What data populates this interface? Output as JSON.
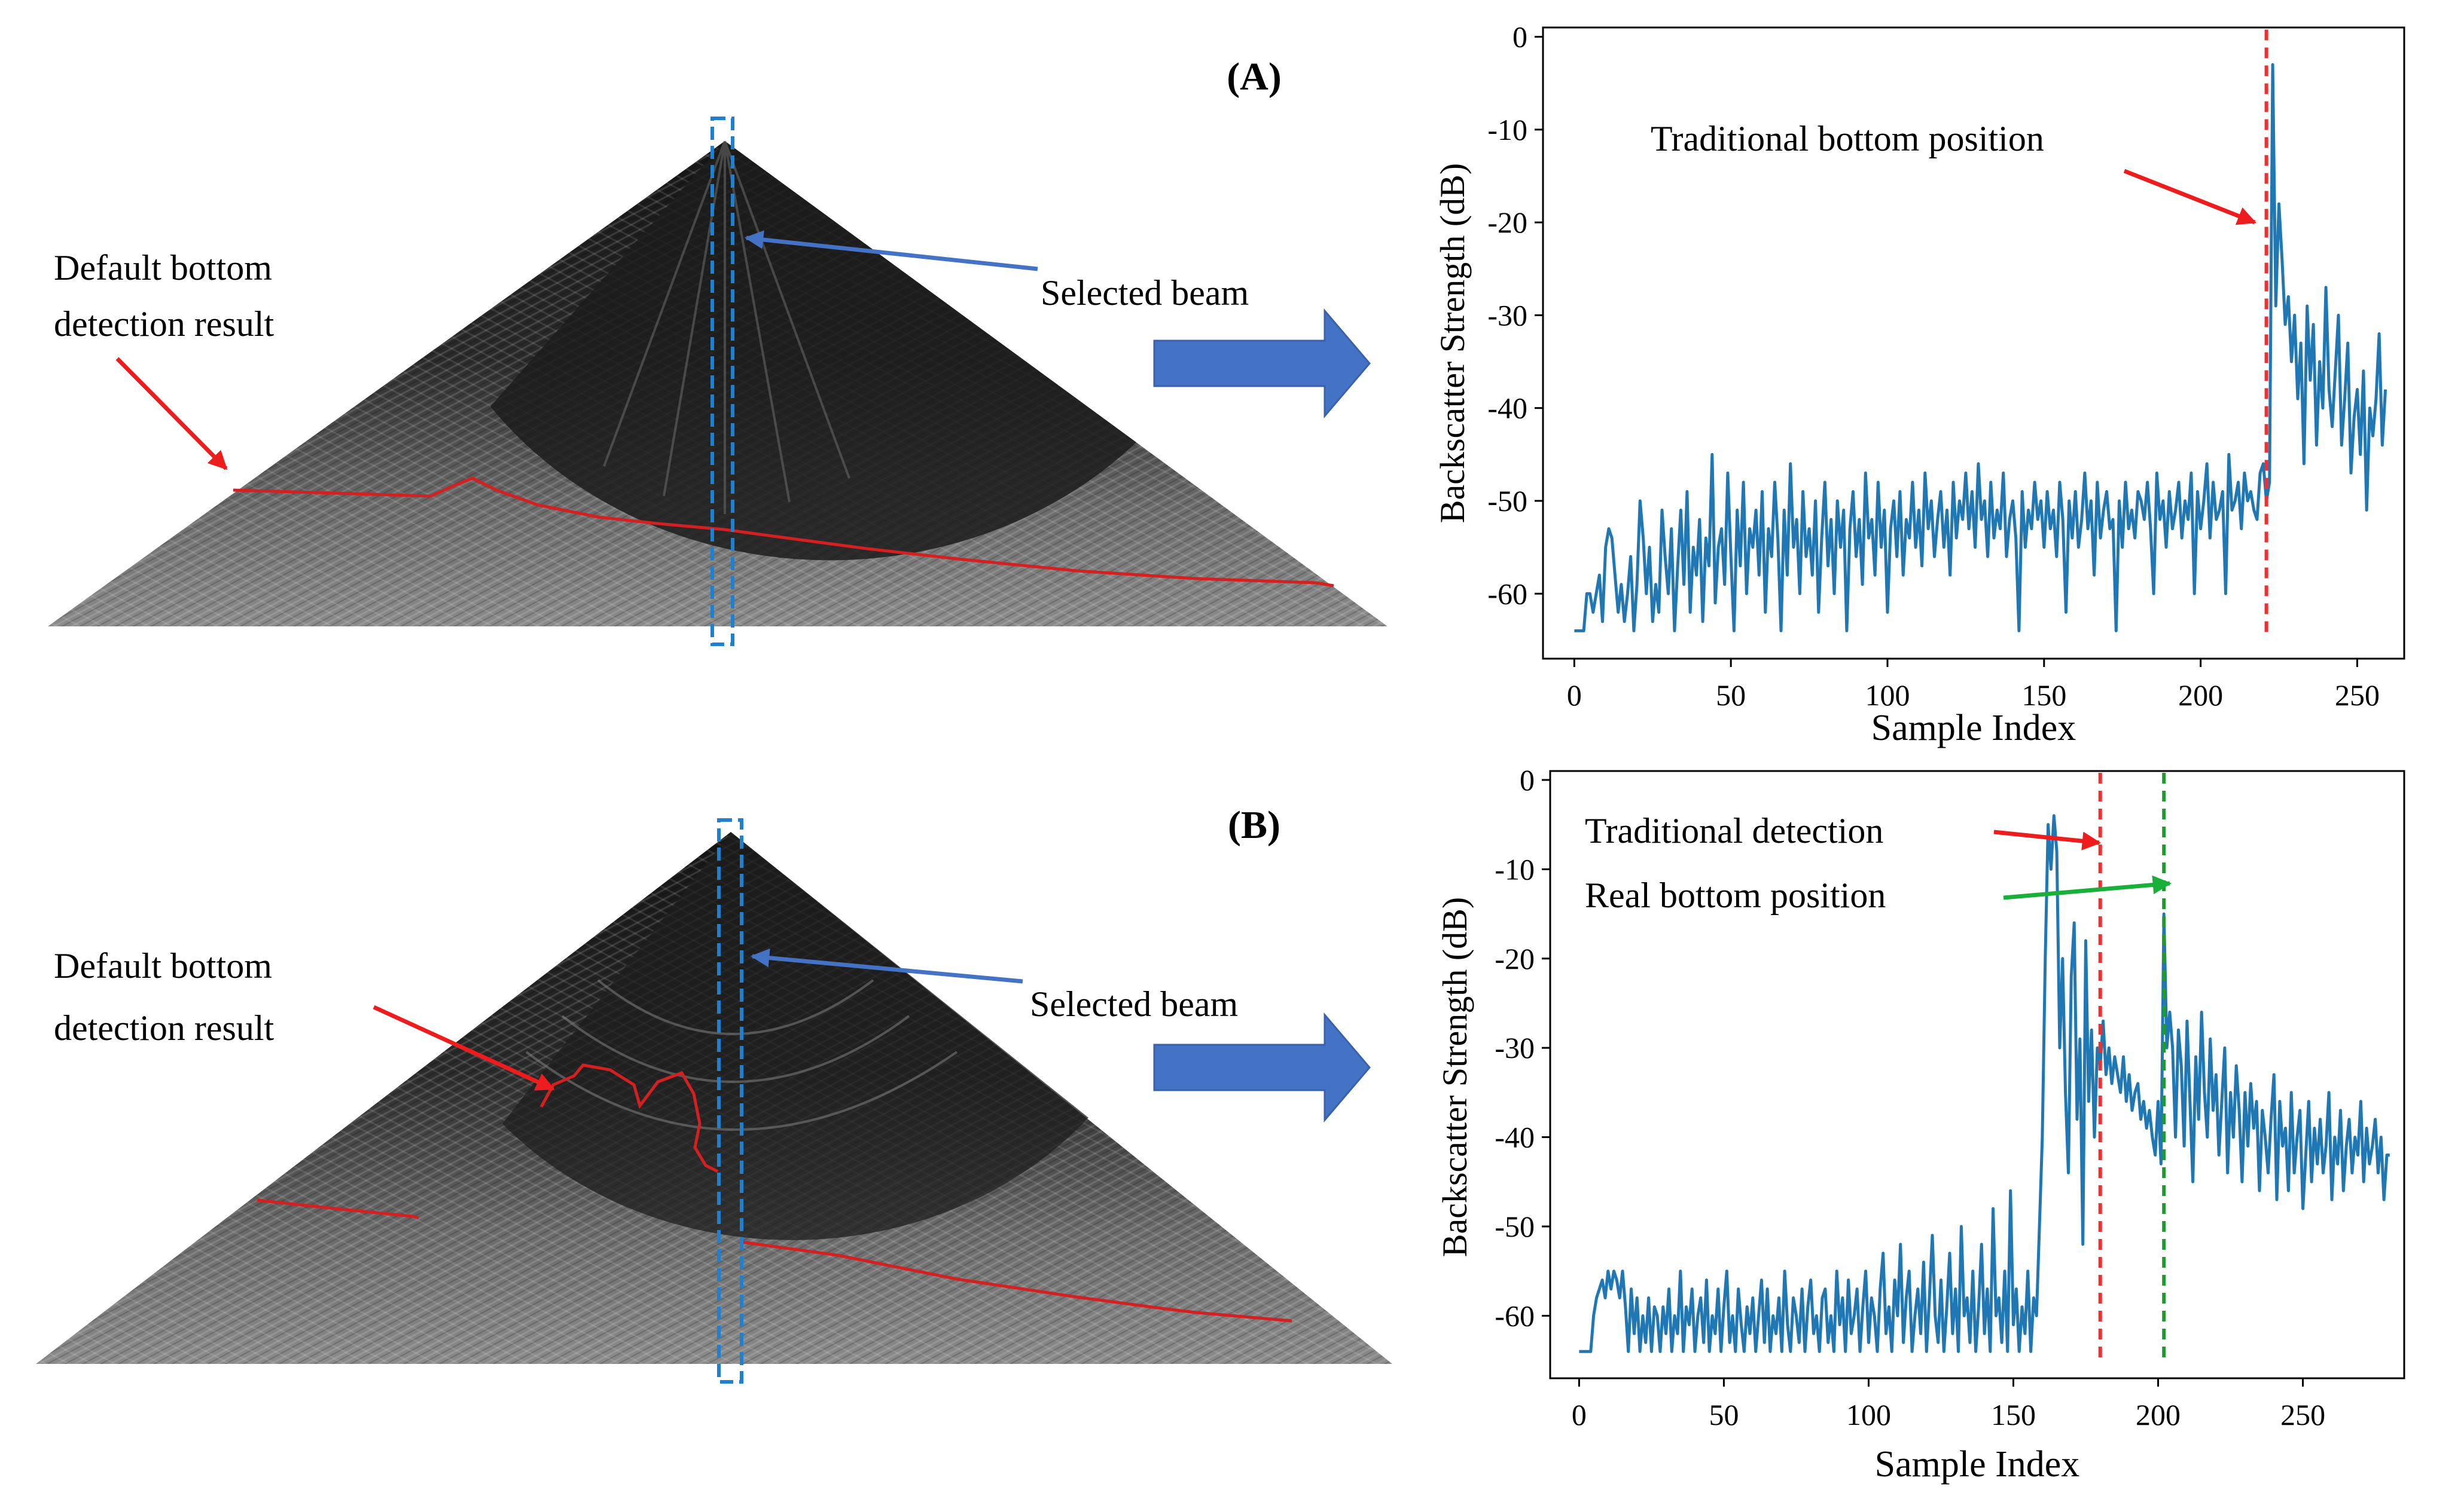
{
  "colors": {
    "series": "#1f77b4",
    "traditional": "#f03030",
    "real": "#1f9a2e",
    "arrow_red": "#ee1c1c",
    "arrow_green": "#19b03a",
    "arrow_blue": "#4472c4",
    "beam_box": "#1f7fd0",
    "big_arrow": "#4472c4",
    "detection_line": "#d42020"
  },
  "panel_a": {
    "label": "(A)",
    "annotation_default": [
      "Default bottom",
      "detection result"
    ],
    "annotation_beam": "Selected beam",
    "annotation_traditional": "Traditional bottom position"
  },
  "panel_b": {
    "label": "(B)",
    "annotation_default": [
      "Default bottom",
      "detection result"
    ],
    "annotation_beam": "Selected beam",
    "annotation_traditional": "Traditional detection",
    "annotation_real": "Real bottom position"
  },
  "chart_data": [
    {
      "type": "line",
      "id": "A",
      "xlabel": "Sample Index",
      "ylabel": "Backscatter Strength (dB)",
      "xlim": [
        -10,
        265
      ],
      "ylim": [
        -67,
        1
      ],
      "xticks": [
        0,
        50,
        100,
        150,
        200,
        250
      ],
      "yticks": [
        0,
        -10,
        -20,
        -30,
        -40,
        -50,
        -60
      ],
      "series": [
        {
          "name": "backscatter",
          "values": [
            -64,
            -64,
            -64,
            -64,
            -60,
            -60,
            -62,
            -60,
            -58,
            -63,
            -55,
            -53,
            -54,
            -58,
            -62,
            -59,
            -63,
            -60,
            -56,
            -64,
            -59,
            -50,
            -54,
            -60,
            -55,
            -63,
            -59,
            -62,
            -51,
            -56,
            -60,
            -53,
            -64,
            -57,
            -51,
            -59,
            -49,
            -62,
            -55,
            -58,
            -52,
            -63,
            -54,
            -57,
            -45,
            -61,
            -55,
            -53,
            -59,
            -47,
            -56,
            -64,
            -51,
            -57,
            -48,
            -60,
            -53,
            -55,
            -51,
            -58,
            -49,
            -62,
            -53,
            -56,
            -48,
            -54,
            -64,
            -51,
            -58,
            -46,
            -55,
            -52,
            -60,
            -49,
            -56,
            -53,
            -58,
            -50,
            -62,
            -54,
            -48,
            -57,
            -52,
            -60,
            -50,
            -55,
            -51,
            -64,
            -53,
            -49,
            -56,
            -52,
            -59,
            -47,
            -54,
            -52,
            -58,
            -48,
            -55,
            -51,
            -62,
            -53,
            -50,
            -56,
            -49,
            -58,
            -52,
            -54,
            -48,
            -55,
            -51,
            -57,
            -47,
            -53,
            -50,
            -56,
            -52,
            -49,
            -55,
            -51,
            -58,
            -48,
            -54,
            -50,
            -52,
            -47,
            -53,
            -49,
            -55,
            -46,
            -52,
            -50,
            -56,
            -48,
            -54,
            -51,
            -53,
            -47,
            -56,
            -52,
            -50,
            -54,
            -64,
            -49,
            -55,
            -51,
            -53,
            -48,
            -52,
            -50,
            -55,
            -49,
            -53,
            -51,
            -56,
            -48,
            -52,
            -62,
            -50,
            -54,
            -49,
            -55,
            -52,
            -47,
            -53,
            -50,
            -58,
            -48,
            -54,
            -51,
            -49,
            -53,
            -52,
            -64,
            -50,
            -55,
            -48,
            -53,
            -51,
            -54,
            -49,
            -50,
            -52,
            -48,
            -53,
            -60,
            -47,
            -52,
            -50,
            -55,
            -49,
            -53,
            -51,
            -48,
            -54,
            -50,
            -52,
            -47,
            -60,
            -49,
            -53,
            -50,
            -46,
            -54,
            -48,
            -52,
            -51,
            -49,
            -60,
            -45,
            -51,
            -50,
            -48,
            -53,
            -47,
            -50,
            -49,
            -51,
            -52,
            -47,
            -46,
            -50,
            -48,
            -3,
            -29,
            -18,
            -24,
            -31,
            -28,
            -35,
            -30,
            -39,
            -33,
            -46,
            -29,
            -37,
            -31,
            -44,
            -35,
            -40,
            -27,
            -38,
            -42,
            -36,
            -30,
            -44,
            -39,
            -33,
            -47,
            -41,
            -38,
            -45,
            -36,
            -51,
            -40,
            -43,
            -39,
            -32,
            -44,
            -38
          ]
        }
      ]
    },
    {
      "type": "line",
      "id": "B",
      "xlabel": "Sample Index",
      "ylabel": "Backscatter Strength (dB)",
      "xlim": [
        -10,
        285
      ],
      "ylim": [
        -67,
        1
      ],
      "xticks": [
        0,
        50,
        100,
        150,
        200,
        250
      ],
      "yticks": [
        0,
        -10,
        -20,
        -30,
        -40,
        -50,
        -60
      ],
      "series": [
        {
          "name": "backscatter",
          "values": [
            -64,
            -64,
            -64,
            -64,
            -64,
            -60,
            -58,
            -57,
            -56,
            -58,
            -55,
            -57,
            -55,
            -56,
            -58,
            -55,
            -59,
            -64,
            -57,
            -62,
            -58,
            -64,
            -60,
            -63,
            -58,
            -64,
            -59,
            -60,
            -64,
            -59,
            -62,
            -57,
            -64,
            -60,
            -62,
            -55,
            -64,
            -59,
            -61,
            -57,
            -64,
            -60,
            -58,
            -63,
            -56,
            -64,
            -60,
            -62,
            -57,
            -64,
            -59,
            -55,
            -63,
            -60,
            -64,
            -57,
            -61,
            -64,
            -59,
            -62,
            -58,
            -64,
            -60,
            -56,
            -63,
            -57,
            -64,
            -60,
            -62,
            -58,
            -64,
            -55,
            -61,
            -64,
            -58,
            -60,
            -63,
            -57,
            -64,
            -59,
            -56,
            -62,
            -60,
            -64,
            -58,
            -57,
            -63,
            -60,
            -64,
            -55,
            -61,
            -58,
            -64,
            -56,
            -62,
            -60,
            -57,
            -64,
            -59,
            -55,
            -63,
            -58,
            -60,
            -64,
            -57,
            -53,
            -62,
            -59,
            -64,
            -56,
            -60,
            -52,
            -63,
            -58,
            -55,
            -64,
            -60,
            -57,
            -62,
            -54,
            -64,
            -58,
            -51,
            -60,
            -63,
            -56,
            -64,
            -59,
            -53,
            -62,
            -57,
            -64,
            -50,
            -60,
            -58,
            -63,
            -55,
            -64,
            -59,
            -52,
            -62,
            -57,
            -64,
            -48,
            -60,
            -58,
            -63,
            -55,
            -64,
            -46,
            -61,
            -57,
            -64,
            -59,
            -62,
            -55,
            -64,
            -58,
            -60,
            -50,
            -40,
            -20,
            -5,
            -10,
            -4,
            -8,
            -30,
            -20,
            -35,
            -44,
            -22,
            -16,
            -38,
            -29,
            -52,
            -18,
            -36,
            -28,
            -40,
            -30,
            -32,
            -27,
            -33,
            -30,
            -34,
            -31,
            -33,
            -35,
            -31,
            -36,
            -33,
            -37,
            -35,
            -34,
            -38,
            -36,
            -39,
            -37,
            -40,
            -42,
            -36,
            -43,
            -15,
            -30,
            -26,
            -30,
            -40,
            -28,
            -32,
            -41,
            -27,
            -36,
            -45,
            -31,
            -38,
            -26,
            -35,
            -40,
            -29,
            -37,
            -33,
            -42,
            -36,
            -30,
            -44,
            -35,
            -40,
            -32,
            -37,
            -45,
            -35,
            -41,
            -34,
            -39,
            -36,
            -46,
            -37,
            -40,
            -44,
            -38,
            -33,
            -47,
            -36,
            -41,
            -39,
            -46,
            -35,
            -44,
            -40,
            -37,
            -48,
            -42,
            -36,
            -45,
            -39,
            -43,
            -38,
            -44,
            -41,
            -35,
            -47,
            -40,
            -43,
            -37,
            -46,
            -41,
            -38,
            -44,
            -40,
            -42,
            -36,
            -45,
            -39,
            -43,
            -41,
            -38,
            -44,
            -40,
            -47,
            -42,
            -42
          ]
        }
      ]
    }
  ]
}
